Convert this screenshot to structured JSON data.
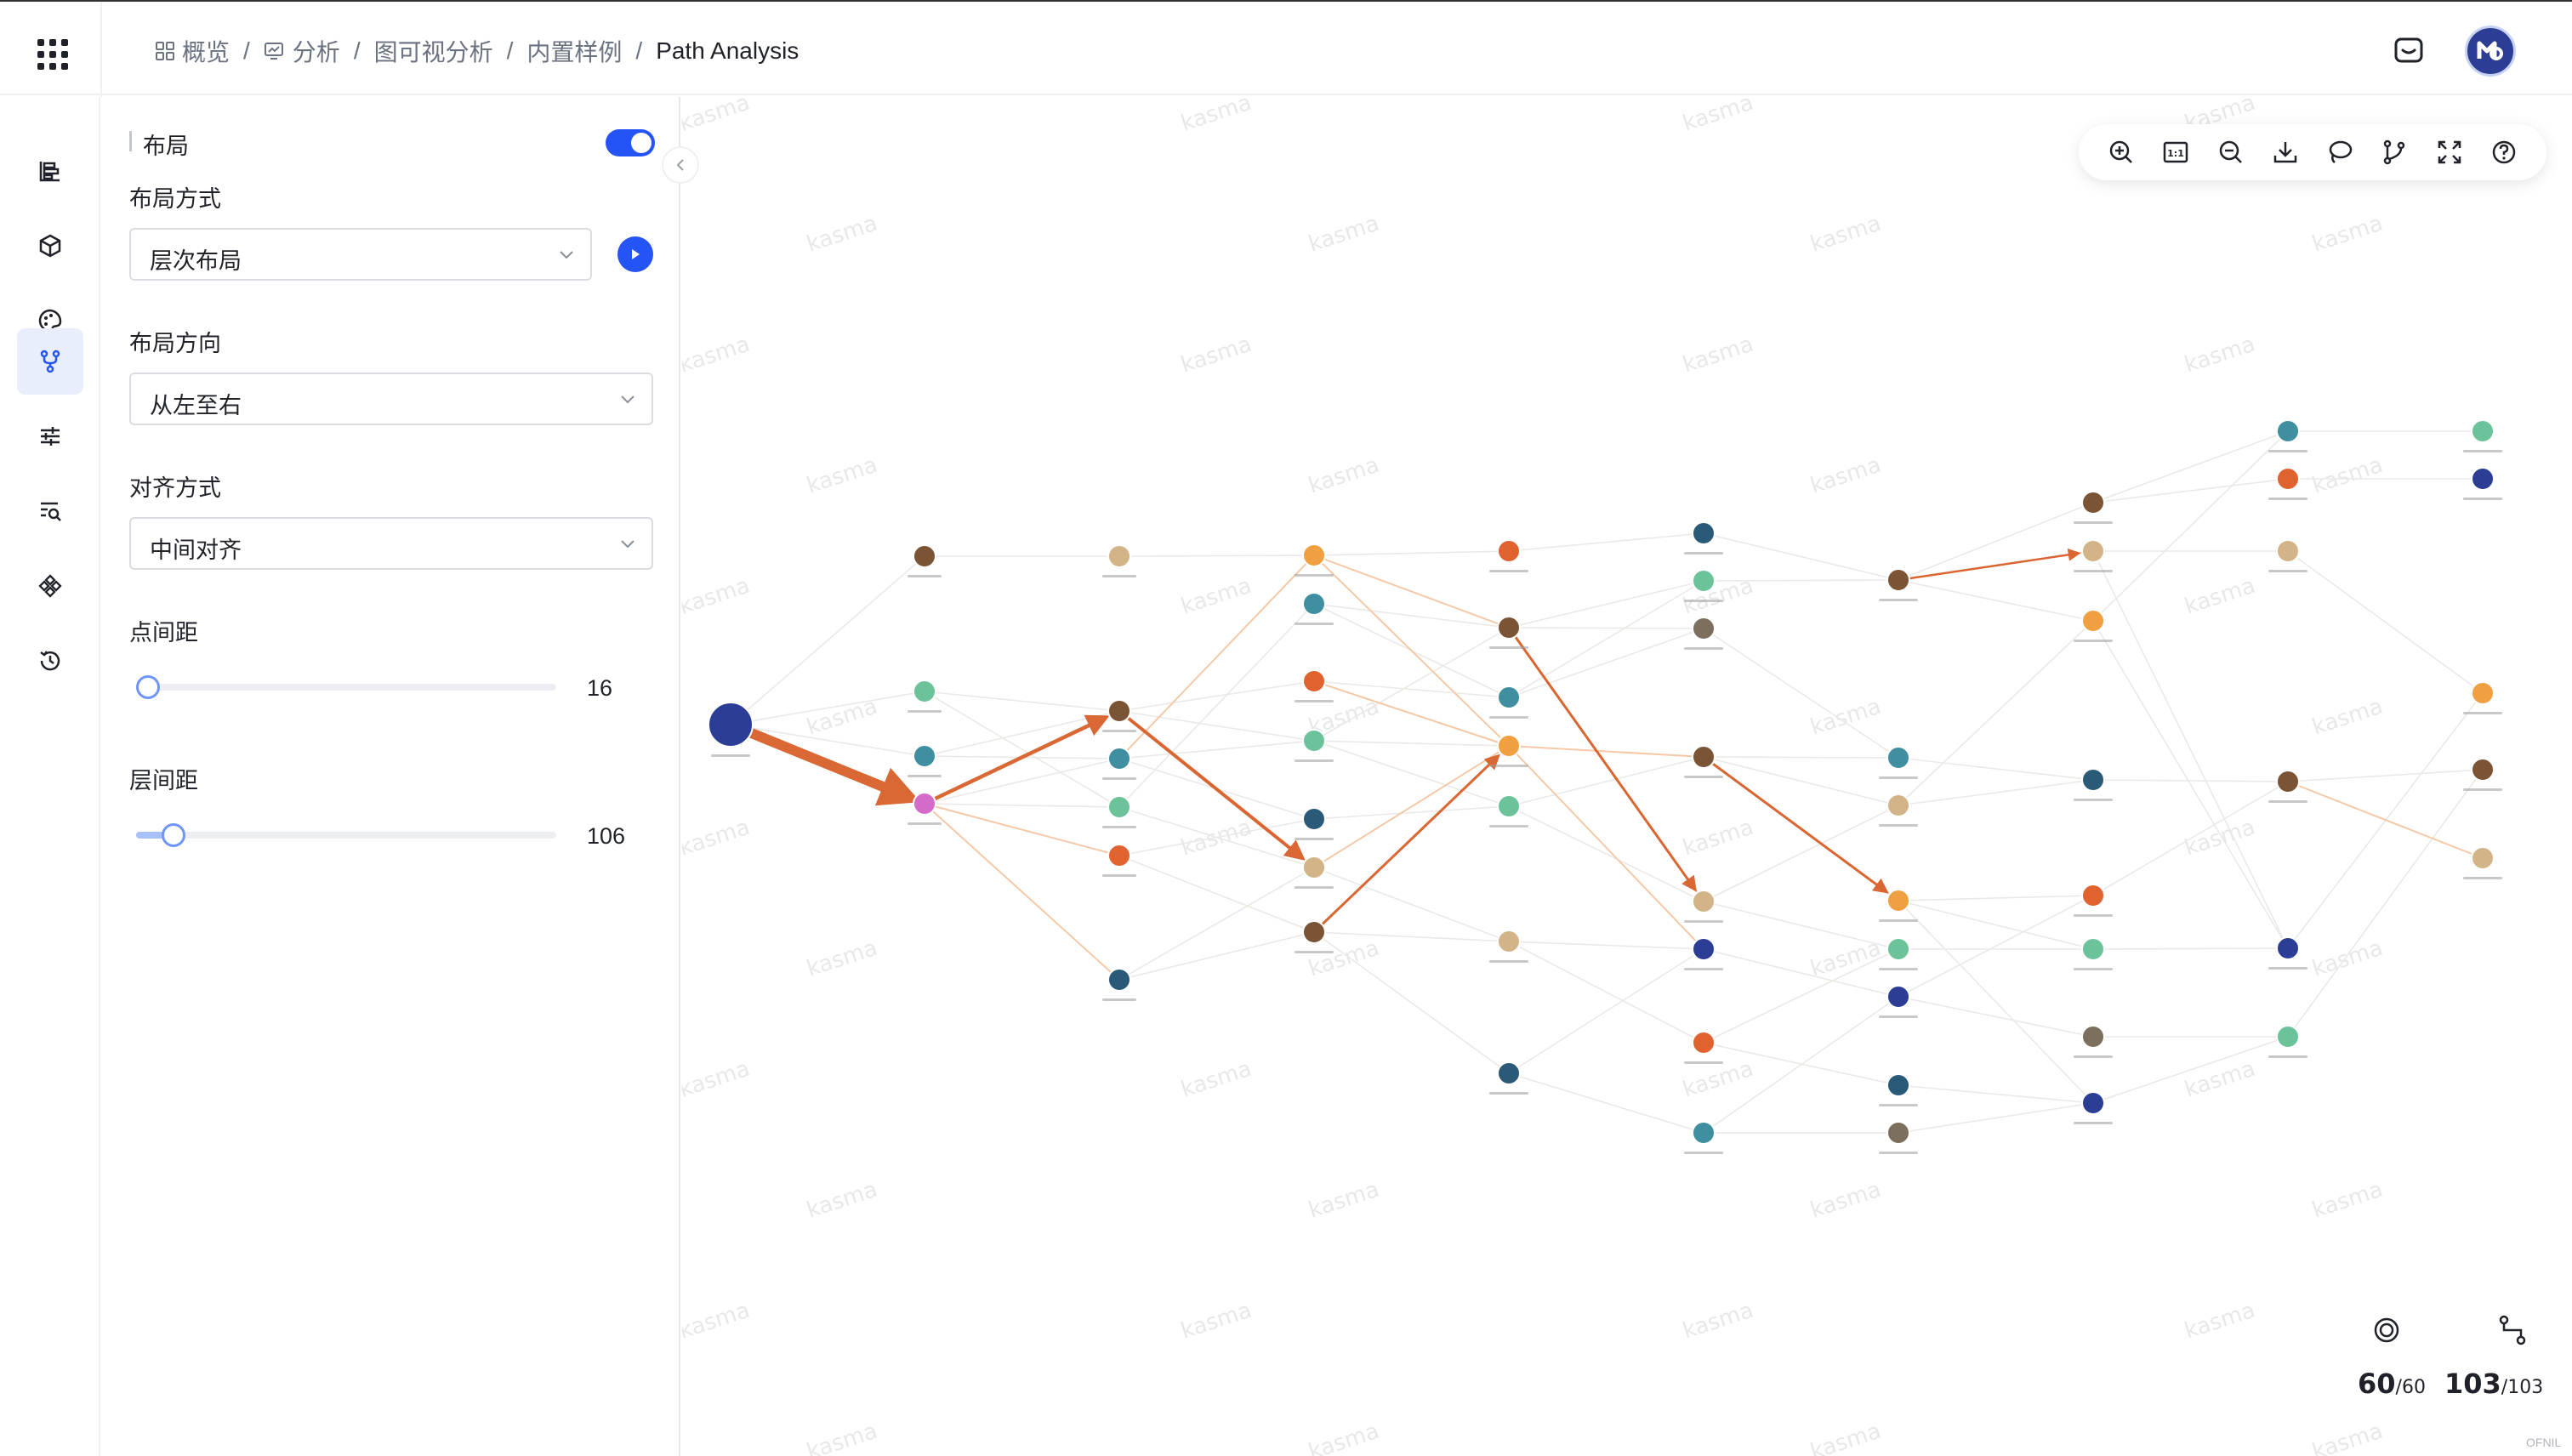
{
  "header": {
    "breadcrumb": [
      {
        "label": "概览",
        "icon": "grid-icon"
      },
      {
        "label": "分析",
        "icon": "chart-icon"
      },
      {
        "label": "图可视分析",
        "icon": ""
      },
      {
        "label": "内置样例",
        "icon": ""
      },
      {
        "label": "Path Analysis",
        "icon": ""
      }
    ],
    "separator": "/"
  },
  "rail": [
    {
      "name": "rail-layers-icon",
      "active": false
    },
    {
      "name": "rail-cube-icon",
      "active": false
    },
    {
      "name": "rail-palette-icon",
      "active": false
    },
    {
      "name": "rail-layout-icon",
      "active": true
    },
    {
      "name": "rail-sliders-icon",
      "active": false
    },
    {
      "name": "rail-search-list-icon",
      "active": false
    },
    {
      "name": "rail-component-icon",
      "active": false
    },
    {
      "name": "rail-history-icon",
      "active": false
    }
  ],
  "panel": {
    "title": "布局",
    "toggle_on": true,
    "layout_method_label": "布局方式",
    "layout_method_value": "层次布局",
    "direction_label": "布局方向",
    "direction_value": "从左至右",
    "align_label": "对齐方式",
    "align_value": "中间对齐",
    "node_spacing_label": "点间距",
    "node_spacing_value": "16",
    "node_spacing_fraction": 0.0,
    "rank_spacing_label": "层间距",
    "rank_spacing_value": "106",
    "rank_spacing_fraction": 0.09
  },
  "toolbar": [
    "zoom-in",
    "fit-1-1",
    "zoom-out",
    "download",
    "lasso",
    "path-select",
    "fullscreen",
    "help"
  ],
  "stats": {
    "nodes_shown": "60",
    "nodes_total": "60",
    "edges_shown": "103",
    "edges_total": "103"
  },
  "watermark": "kasma",
  "renderer_tag": "OFNIL",
  "colors": {
    "accent": "#2454f5",
    "path_edge": "#d9602a",
    "navy": "#2b3d94",
    "teal": "#3f8fa0",
    "mint": "#6cc39a",
    "orange": "#f0a040",
    "red_orange": "#e0622f",
    "tan": "#d3b488",
    "brown": "#7a5434",
    "dark_teal": "#2b5a78",
    "grey_brown": "#7c6f5e",
    "pink": "#d46bc9"
  }
}
